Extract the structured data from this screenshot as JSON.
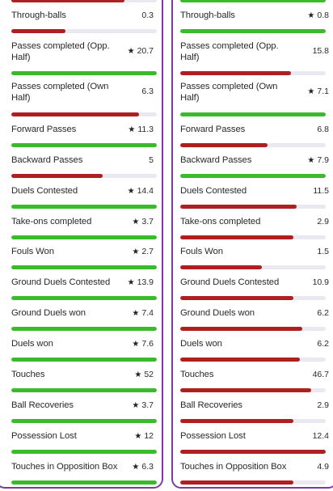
{
  "left": {
    "top_bar_fraction": 0.78,
    "top_bar_color": "red",
    "stats": [
      {
        "label": "Through-balls",
        "value": "0.3",
        "star": false,
        "fill": 0.37,
        "color": "red"
      },
      {
        "label": "Passes completed (Opp. Half)",
        "value": "20.7",
        "star": true,
        "fill": 1.0,
        "color": "green"
      },
      {
        "label": "Passes completed (Own Half)",
        "value": "6.3",
        "star": false,
        "fill": 0.88,
        "color": "red"
      },
      {
        "label": "Forward Passes",
        "value": "11.3",
        "star": true,
        "fill": 1.0,
        "color": "green"
      },
      {
        "label": "Backward Passes",
        "value": "5",
        "star": false,
        "fill": 0.63,
        "color": "red"
      },
      {
        "label": "Duels Contested",
        "value": "14.4",
        "star": true,
        "fill": 1.0,
        "color": "green"
      },
      {
        "label": "Take-ons completed",
        "value": "3.7",
        "star": true,
        "fill": 1.0,
        "color": "green"
      },
      {
        "label": "Fouls Won",
        "value": "2.7",
        "star": true,
        "fill": 1.0,
        "color": "green"
      },
      {
        "label": "Ground Duels Contested",
        "value": "13.9",
        "star": true,
        "fill": 1.0,
        "color": "green"
      },
      {
        "label": "Ground Duels won",
        "value": "7.4",
        "star": true,
        "fill": 1.0,
        "color": "green"
      },
      {
        "label": "Duels won",
        "value": "7.6",
        "star": true,
        "fill": 1.0,
        "color": "green"
      },
      {
        "label": "Touches",
        "value": "52",
        "star": true,
        "fill": 1.0,
        "color": "green"
      },
      {
        "label": "Ball Recoveries",
        "value": "3.7",
        "star": true,
        "fill": 1.0,
        "color": "green"
      },
      {
        "label": "Possession Lost",
        "value": "12",
        "star": true,
        "fill": 1.0,
        "color": "green"
      },
      {
        "label": "Touches in Opposition Box",
        "value": "6.3",
        "star": true,
        "fill": 1.0,
        "color": "green"
      }
    ]
  },
  "right": {
    "top_bar_fraction": 1.0,
    "top_bar_color": "green",
    "stats": [
      {
        "label": "Through-balls",
        "value": "0.8",
        "star": true,
        "fill": 1.0,
        "color": "green"
      },
      {
        "label": "Passes completed (Opp. Half)",
        "value": "15.8",
        "star": false,
        "fill": 0.76,
        "color": "red"
      },
      {
        "label": "Passes completed (Own Half)",
        "value": "7.1",
        "star": true,
        "fill": 1.0,
        "color": "green"
      },
      {
        "label": "Forward Passes",
        "value": "6.8",
        "star": false,
        "fill": 0.6,
        "color": "red"
      },
      {
        "label": "Backward Passes",
        "value": "7.9",
        "star": true,
        "fill": 1.0,
        "color": "green"
      },
      {
        "label": "Duels Contested",
        "value": "11.5",
        "star": false,
        "fill": 0.8,
        "color": "red"
      },
      {
        "label": "Take-ons completed",
        "value": "2.9",
        "star": false,
        "fill": 0.78,
        "color": "red"
      },
      {
        "label": "Fouls Won",
        "value": "1.5",
        "star": false,
        "fill": 0.56,
        "color": "red"
      },
      {
        "label": "Ground Duels Contested",
        "value": "10.9",
        "star": false,
        "fill": 0.78,
        "color": "red"
      },
      {
        "label": "Ground Duels won",
        "value": "6.2",
        "star": false,
        "fill": 0.84,
        "color": "red"
      },
      {
        "label": "Duels won",
        "value": "6.2",
        "star": false,
        "fill": 0.82,
        "color": "red"
      },
      {
        "label": "Touches",
        "value": "46.7",
        "star": false,
        "fill": 0.9,
        "color": "red"
      },
      {
        "label": "Ball Recoveries",
        "value": "2.9",
        "star": false,
        "fill": 0.78,
        "color": "red"
      },
      {
        "label": "Possession Lost",
        "value": "12.4",
        "star": false,
        "fill": 1.0,
        "color": "red"
      },
      {
        "label": "Touches in Opposition Box",
        "value": "4.9",
        "star": false,
        "fill": 0.78,
        "color": "red"
      }
    ]
  },
  "colors": {
    "green": "#3bba2c",
    "red": "#b01f1f",
    "track": "#ece8f2",
    "border": "#7c3aa6"
  },
  "icons": {
    "star": "star-icon"
  }
}
